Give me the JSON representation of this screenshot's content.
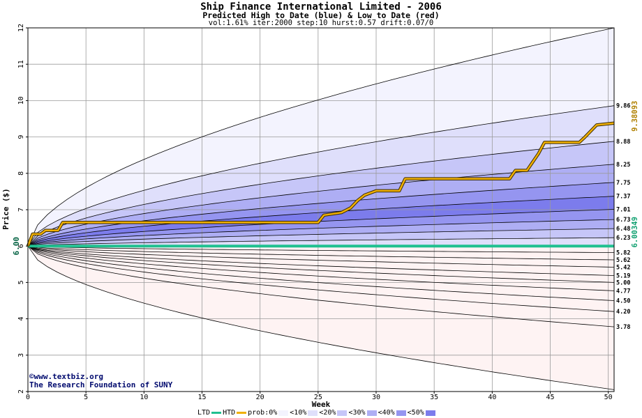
{
  "chart_data": {
    "type": "area",
    "title": "Ship Finance International Limited - 2006",
    "subtitle": "Predicted High to Date (blue) &  Low to Date (red)",
    "params": "vol:1.61% iter:2000 step:10 hurst:0.57 drift:0.07/0",
    "xlabel": "Week",
    "ylabel": "Price ($)",
    "xlim": [
      0,
      50.5
    ],
    "ylim": [
      2,
      12
    ],
    "x_ticks": [
      0,
      5,
      10,
      15,
      20,
      25,
      30,
      35,
      40,
      45,
      50
    ],
    "y_ticks": [
      2,
      3,
      4,
      5,
      6,
      7,
      8,
      9,
      10,
      11,
      12
    ],
    "start_price_label": "6.00",
    "start_price": 6.0,
    "grid": true,
    "high_bands": [
      {
        "percentile": 0,
        "end": 12.0,
        "color": "#f3f3fe"
      },
      {
        "percentile": 10,
        "end": 9.86,
        "color": "#dfdffb"
      },
      {
        "percentile": 20,
        "end": 8.88,
        "color": "#c6c6f8"
      },
      {
        "percentile": 30,
        "end": 8.25,
        "color": "#aeaef4"
      },
      {
        "percentile": 40,
        "end": 7.75,
        "color": "#9595f0"
      },
      {
        "percentile": 50,
        "end": 7.37,
        "color": "#7c7cec"
      },
      {
        "percentile": 60,
        "end": 7.01,
        "color": "#9595f0"
      },
      {
        "percentile": 70,
        "end": 6.73,
        "color": "#aeaef4"
      },
      {
        "percentile": 80,
        "end": 6.48,
        "color": "#c6c6f8"
      },
      {
        "percentile": 90,
        "end": 6.23,
        "color": "#dfdffb"
      }
    ],
    "low_bands": [
      {
        "percentile": 90,
        "end": 5.82,
        "color": "#fde3e3"
      },
      {
        "percentile": 80,
        "end": 5.62,
        "color": "#fbcaca"
      },
      {
        "percentile": 70,
        "end": 5.42,
        "color": "#f9b0b0"
      },
      {
        "percentile": 60,
        "end": 5.19,
        "color": "#f69797"
      },
      {
        "percentile": 50,
        "end": 5.0,
        "color": "#f38080"
      },
      {
        "percentile": 40,
        "end": 4.77,
        "color": "#f69797"
      },
      {
        "percentile": 30,
        "end": 4.5,
        "color": "#f9b0b0"
      },
      {
        "percentile": 20,
        "end": 4.2,
        "color": "#fbcaca"
      },
      {
        "percentile": 10,
        "end": 3.78,
        "color": "#fde3e3"
      },
      {
        "percentile": 0,
        "end": 2.05,
        "color": "#fef3f3"
      }
    ],
    "right_labels": [
      "9.86",
      "8.88",
      "8.25",
      "7.75",
      "7.37",
      "7.01",
      "6.73",
      "6.48",
      "6.23",
      "5.82",
      "5.62",
      "5.42",
      "5.19",
      "5.00",
      "4.77",
      "4.50",
      "4.20",
      "3.78"
    ],
    "htd_series": {
      "name": "HTD",
      "color": "#f0b000",
      "final_label": "9.38093",
      "points": [
        [
          0,
          6.0
        ],
        [
          0.4,
          6.33
        ],
        [
          1.1,
          6.33
        ],
        [
          1.5,
          6.43
        ],
        [
          2.6,
          6.43
        ],
        [
          3.0,
          6.65
        ],
        [
          25.0,
          6.65
        ],
        [
          25.5,
          6.85
        ],
        [
          27.0,
          6.92
        ],
        [
          27.8,
          7.05
        ],
        [
          28.4,
          7.25
        ],
        [
          29.0,
          7.4
        ],
        [
          30.0,
          7.52
        ],
        [
          32.0,
          7.52
        ],
        [
          32.5,
          7.85
        ],
        [
          41.5,
          7.85
        ],
        [
          42.0,
          8.08
        ],
        [
          43.0,
          8.08
        ],
        [
          44.0,
          8.55
        ],
        [
          44.5,
          8.85
        ],
        [
          47.5,
          8.85
        ],
        [
          48.0,
          9.0
        ],
        [
          49.0,
          9.33
        ],
        [
          50.5,
          9.38
        ]
      ]
    },
    "ltd_series": {
      "name": "LTD",
      "color": "#20c090",
      "final_label": "6.00349",
      "points": [
        [
          0,
          6.0
        ],
        [
          50.5,
          6.0
        ]
      ]
    },
    "legend": {
      "ltd": "LTD",
      "htd": "HTD",
      "prob_prefix": "prob:0%",
      "items": [
        "<10%",
        "<20%",
        "<30%",
        "<40%",
        "<50%"
      ],
      "colors": [
        "#f3f3fe",
        "#dfdffb",
        "#c6c6f8",
        "#aeaef4",
        "#9595f0",
        "#7c7cec"
      ]
    },
    "credits": [
      "©www.textbiz.org",
      "The Research Foundation of SUNY"
    ]
  }
}
